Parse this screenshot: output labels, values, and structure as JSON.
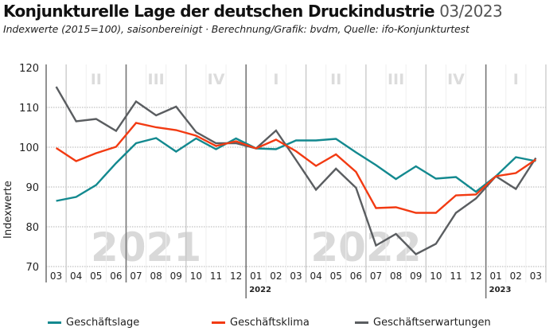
{
  "header": {
    "title": "Konjunkturelle Lage der deutschen Druckindustrie",
    "date": "03/2023",
    "subtitle": "Indexwerte (2015=100), saisonbereinigt · Berechnung/Grafik: bvdm, Quelle: ifo-Konjunkturtest"
  },
  "chart_data": {
    "type": "line",
    "title": "Konjunkturelle Lage der deutschen Druckindustrie 03/2023",
    "subtitle": "Indexwerte (2015=100), saisonbereinigt · Berechnung/Grafik: bvdm, Quelle: ifo-Konjunkturtest",
    "xlabel": "",
    "ylabel": "Indexwerte",
    "ylim": [
      70,
      120
    ],
    "yticks": [
      70,
      80,
      90,
      100,
      110,
      120
    ],
    "grid": true,
    "legend_position": "bottom",
    "x": [
      "03",
      "04",
      "05",
      "06",
      "07",
      "08",
      "09",
      "10",
      "11",
      "12",
      "01",
      "02",
      "03",
      "04",
      "05",
      "06",
      "07",
      "08",
      "09",
      "10",
      "11",
      "12",
      "01",
      "02",
      "03"
    ],
    "year_labels": [
      {
        "label": "2022",
        "at_index": 10
      },
      {
        "label": "2023",
        "at_index": 22
      }
    ],
    "year_watermarks": [
      {
        "label": "2021",
        "start_index": 0,
        "end_index": 9
      },
      {
        "label": "2022",
        "start_index": 10,
        "end_index": 21
      }
    ],
    "quarters": [
      {
        "label": "II",
        "start_index": 1,
        "end_index": 3
      },
      {
        "label": "III",
        "start_index": 4,
        "end_index": 6
      },
      {
        "label": "IV",
        "start_index": 7,
        "end_index": 9
      },
      {
        "label": "I",
        "start_index": 10,
        "end_index": 12
      },
      {
        "label": "II",
        "start_index": 13,
        "end_index": 15
      },
      {
        "label": "III",
        "start_index": 16,
        "end_index": 18
      },
      {
        "label": "IV",
        "start_index": 19,
        "end_index": 21
      },
      {
        "label": "I",
        "start_index": 22,
        "end_index": 24
      }
    ],
    "series": [
      {
        "name": "Geschäftslage",
        "color": "#13898f",
        "values": [
          86.5,
          87.5,
          90.5,
          96.0,
          101.0,
          102.3,
          98.9,
          102.2,
          99.5,
          102.2,
          99.7,
          99.5,
          101.7,
          101.7,
          102.1,
          98.7,
          95.5,
          92.0,
          95.2,
          92.1,
          92.5,
          88.8,
          92.7,
          97.5,
          96.5
        ]
      },
      {
        "name": "Geschäftsklima",
        "color": "#f23a12",
        "values": [
          99.8,
          96.5,
          98.5,
          100.1,
          106.1,
          105.0,
          104.3,
          102.9,
          100.3,
          101.5,
          99.7,
          101.9,
          99.0,
          95.3,
          98.2,
          93.8,
          84.7,
          84.9,
          83.5,
          83.5,
          87.9,
          88.1,
          92.7,
          93.5,
          96.9
        ]
      },
      {
        "name": "Geschäftserwartungen",
        "color": "#5a5d60",
        "values": [
          115.2,
          106.5,
          107.1,
          104.1,
          111.5,
          108.0,
          110.2,
          103.8,
          101.0,
          101.0,
          99.7,
          104.2,
          96.8,
          89.3,
          94.6,
          89.8,
          75.3,
          78.2,
          73.1,
          75.7,
          83.5,
          87.1,
          92.7,
          89.5,
          97.3
        ]
      }
    ]
  }
}
